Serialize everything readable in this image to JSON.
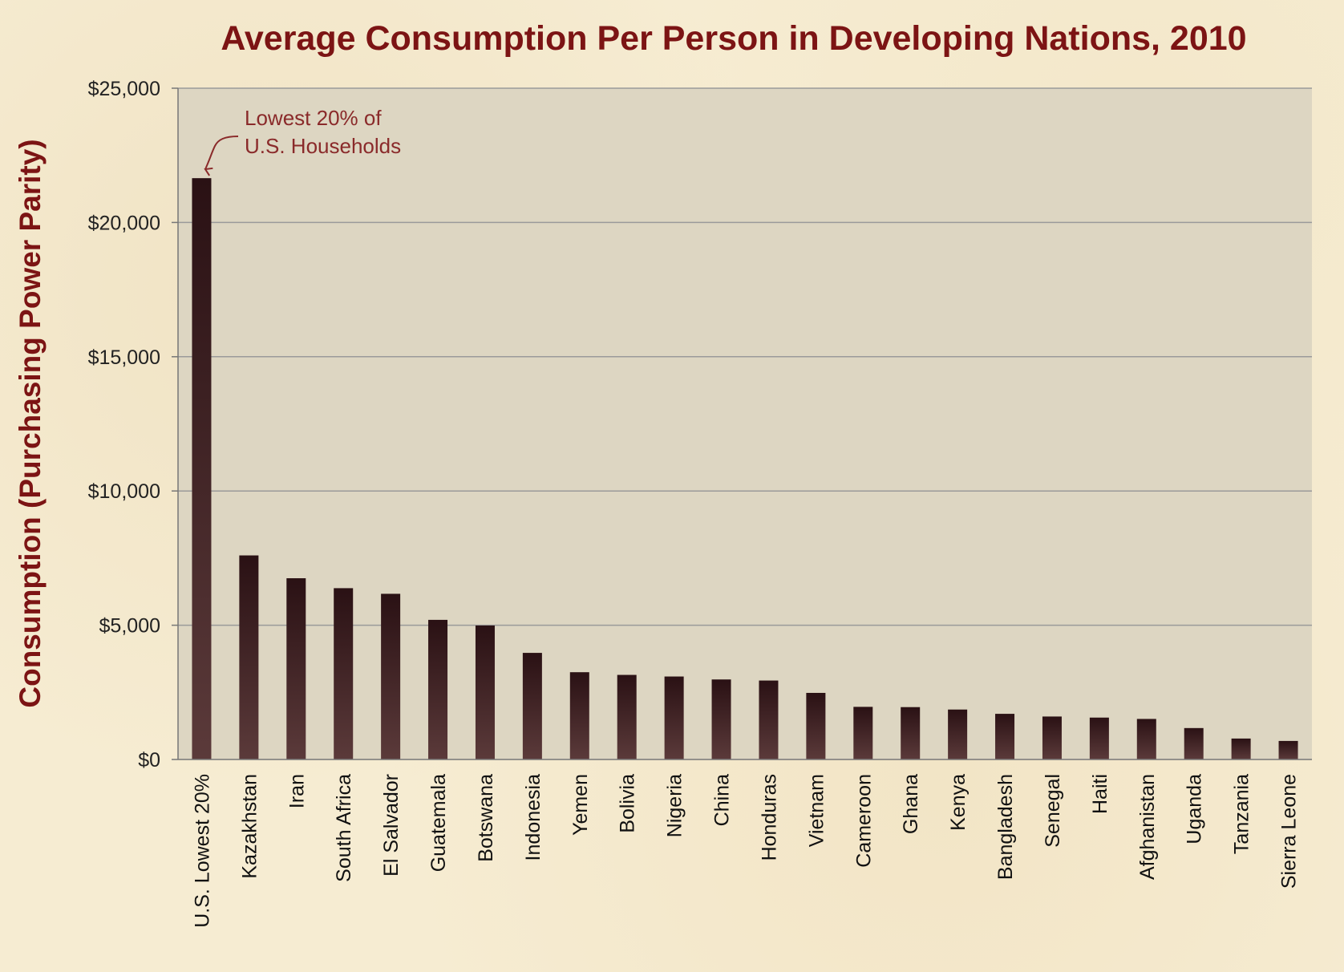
{
  "chart_data": {
    "type": "bar",
    "title": "Average Consumption Per Person in Developing Nations, 2010",
    "xlabel": "",
    "ylabel": "Consumption (Purchasing Power Parity)",
    "ylim": [
      0,
      25000
    ],
    "yticks": [
      0,
      5000,
      10000,
      15000,
      20000,
      25000
    ],
    "ytick_labels": [
      "$0",
      "$5,000",
      "$10,000",
      "$15,000",
      "$20,000",
      "$25,000"
    ],
    "grid": true,
    "categories": [
      "U.S. Lowest 20%",
      "Kazakhstan",
      "Iran",
      "South Africa",
      "El Salvador",
      "Guatemala",
      "Botswana",
      "Indonesia",
      "Yemen",
      "Bolivia",
      "Nigeria",
      "China",
      "Honduras",
      "Vietnam",
      "Cameroon",
      "Ghana",
      "Kenya",
      "Bangladesh",
      "Senegal",
      "Haiti",
      "Afghanistan",
      "Uganda",
      "Tanzania",
      "Sierra Leone"
    ],
    "values": [
      21650,
      7600,
      6750,
      6380,
      6170,
      5200,
      4990,
      3970,
      3250,
      3150,
      3090,
      2980,
      2940,
      2480,
      1960,
      1950,
      1860,
      1700,
      1600,
      1560,
      1510,
      1170,
      780,
      690
    ],
    "annotations": [
      {
        "lines": [
          "Lowest  20% of",
          "U.S.  Households"
        ],
        "target_category": "U.S. Lowest 20%"
      }
    ]
  },
  "colors": {
    "background": "#f6ecd2",
    "plot_area": "#ddd6c2",
    "bar_top": "#2a1114",
    "bar_bottom": "#5b3a3a",
    "title": "#7c1414",
    "annotation": "#8a2a2a",
    "gridline": "#9a9a9a"
  }
}
